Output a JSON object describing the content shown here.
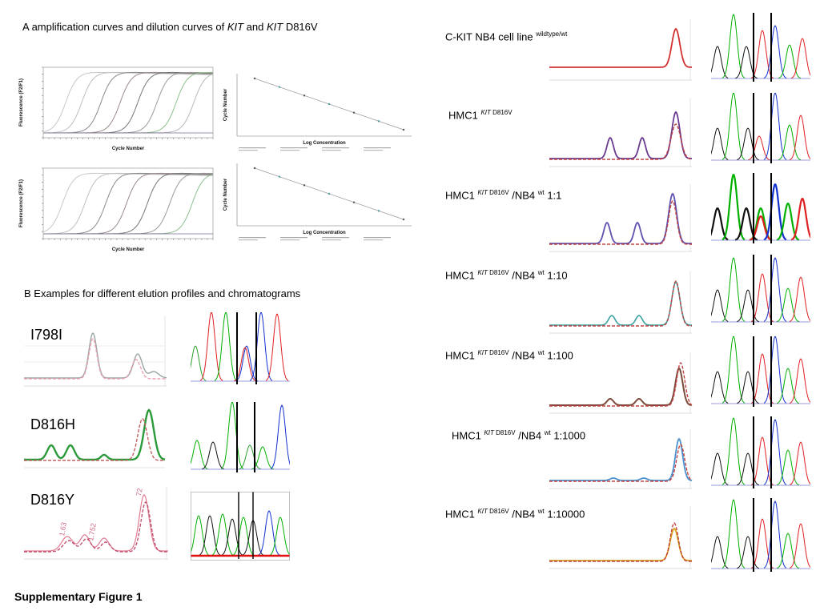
{
  "panel_a": {
    "heading_pre": "A amplification curves and dilution curves of ",
    "kit1": "KIT",
    "and": " and ",
    "kit2": "KIT",
    "heading_post": " D816V",
    "amp_xlabel": "Cycle Number",
    "amp_ylabel": "Fluorescence (F2/F1)",
    "dil_xlabel": "Log Concentration",
    "dil_ylabel": "Cycle Number"
  },
  "panel_b": {
    "heading": "B Examples for different elution profiles and chromatograms",
    "rows": [
      {
        "label": "I798I"
      },
      {
        "label": "D816H"
      },
      {
        "label": "D816Y",
        "peak_labels": [
          "1.63",
          "1.752",
          "72"
        ]
      }
    ]
  },
  "right_panel": {
    "rows": [
      {
        "main": "C-KIT NB4 cell line ",
        "sup": "wildtype/wt"
      },
      {
        "main": "HMC1 ",
        "kit": "KIT",
        "sup": " D816V"
      },
      {
        "main": "HMC1 ",
        "kit": "KIT",
        "sup": " D816V",
        "mid": " /NB4 ",
        "sup2": "wt",
        "ratio": " 1:1"
      },
      {
        "main": "HMC1 ",
        "kit": "KIT",
        "sup": " D816V",
        "mid": " /NB4 ",
        "sup2": "wt",
        "ratio": " 1:10"
      },
      {
        "main": "HMC1 ",
        "kit": "KIT",
        "sup": " D816V",
        "mid": " /NB4 ",
        "sup2": "wt",
        "ratio": " 1:100"
      },
      {
        "main": "HMC1 ",
        "kit": "KIT",
        "sup": " D816V",
        "mid": " /NB4 ",
        "sup2": "wt",
        "ratio": " 1:1000"
      },
      {
        "main": "HMC1 ",
        "kit": "KIT",
        "sup": " D816V",
        "mid": " /NB4 ",
        "sup2": "wt",
        "ratio": " 1:10000"
      }
    ]
  },
  "caption": "Supplementary Figure 1"
}
